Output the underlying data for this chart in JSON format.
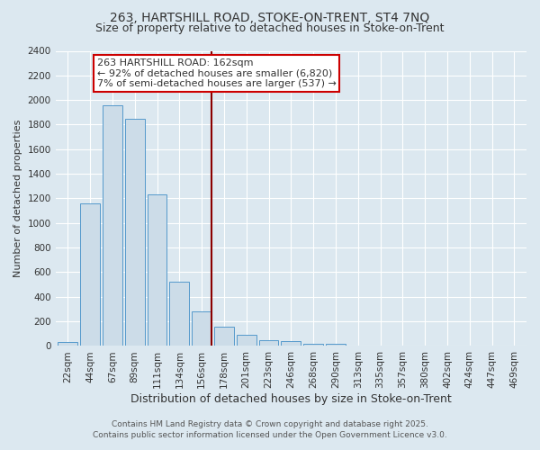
{
  "title1": "263, HARTSHILL ROAD, STOKE-ON-TRENT, ST4 7NQ",
  "title2": "Size of property relative to detached houses in Stoke-on-Trent",
  "xlabel": "Distribution of detached houses by size in Stoke-on-Trent",
  "ylabel": "Number of detached properties",
  "bin_labels": [
    "22sqm",
    "44sqm",
    "67sqm",
    "89sqm",
    "111sqm",
    "134sqm",
    "156sqm",
    "178sqm",
    "201sqm",
    "223sqm",
    "246sqm",
    "268sqm",
    "290sqm",
    "313sqm",
    "335sqm",
    "357sqm",
    "380sqm",
    "402sqm",
    "424sqm",
    "447sqm",
    "469sqm"
  ],
  "bar_heights": [
    30,
    1160,
    1960,
    1850,
    1230,
    520,
    280,
    155,
    90,
    45,
    40,
    20,
    15,
    5,
    3,
    2,
    1,
    1,
    1,
    1,
    1
  ],
  "bar_color": "#ccdce8",
  "bar_edge_color": "#5599cc",
  "vline_x_index": 6.44,
  "vline_color": "#8b0000",
  "annotation_text": "263 HARTSHILL ROAD: 162sqm\n← 92% of detached houses are smaller (6,820)\n7% of semi-detached houses are larger (537) →",
  "annotation_box_facecolor": "#ffffff",
  "annotation_box_edgecolor": "#cc0000",
  "ylim": [
    0,
    2400
  ],
  "yticks": [
    0,
    200,
    400,
    600,
    800,
    1000,
    1200,
    1400,
    1600,
    1800,
    2000,
    2200,
    2400
  ],
  "footer1": "Contains HM Land Registry data © Crown copyright and database right 2025.",
  "footer2": "Contains public sector information licensed under the Open Government Licence v3.0.",
  "bg_color": "#dce8f0",
  "plot_bg_color": "#dce8f0",
  "grid_color": "#ffffff",
  "title_fontsize": 10,
  "subtitle_fontsize": 9,
  "ylabel_fontsize": 8,
  "xlabel_fontsize": 9,
  "tick_fontsize": 7.5,
  "annot_fontsize": 8
}
